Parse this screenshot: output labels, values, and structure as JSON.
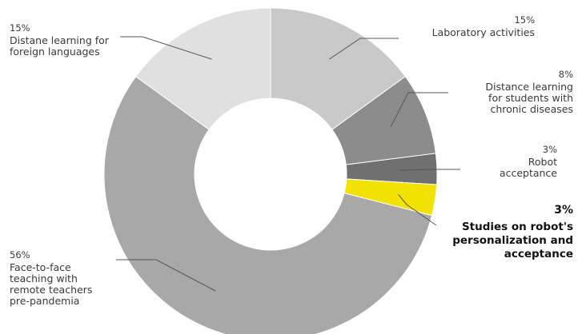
{
  "chart_data": {
    "type": "pie",
    "donut": true,
    "title": "",
    "slices": [
      {
        "label": "Laboratory activities",
        "percent_label": "15%",
        "value": 15,
        "color": "#c9c9c9"
      },
      {
        "label": "Distance learning\nfor students with\nchronic diseases",
        "percent_label": "8%",
        "value": 8,
        "color": "#8c8c8c"
      },
      {
        "label": "Robot\nacceptance",
        "percent_label": "3%",
        "value": 3,
        "color": "#707070"
      },
      {
        "label": "Studies on robot's\npersonalization and\nacceptance",
        "percent_label": "3%",
        "value": 3,
        "color": "#f2e200"
      },
      {
        "label": "Face-to-face\nteaching with\nremote teachers\npre-pandemia",
        "percent_label": "56%",
        "value": 56,
        "color": "#a8a8a8"
      },
      {
        "label": "Distane learning for\nforeign languages",
        "percent_label": "15%",
        "value": 15,
        "color": "#e0e0e0"
      }
    ]
  }
}
